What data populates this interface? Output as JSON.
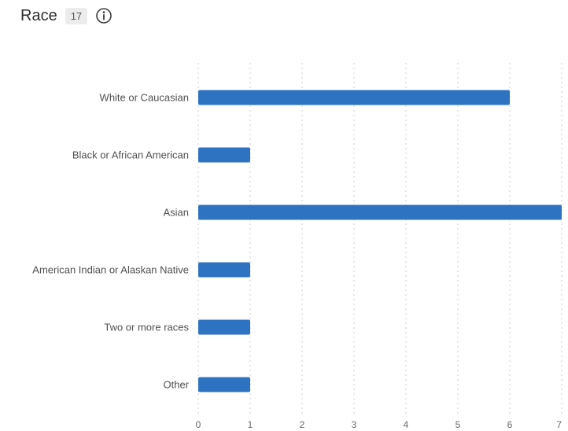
{
  "header": {
    "title": "Race",
    "count": "17",
    "info_icon": "info-circle-icon"
  },
  "chart_data": {
    "type": "bar",
    "orientation": "horizontal",
    "title": "",
    "categories": [
      "White or Caucasian",
      "Black or African American",
      "Asian",
      "American Indian or Alaskan Native",
      "Two or more races",
      "Other"
    ],
    "values": [
      6,
      1,
      7,
      1,
      1,
      1
    ],
    "xlim": [
      0,
      7
    ],
    "xticks": [
      0,
      1,
      2,
      3,
      4,
      5,
      6,
      7
    ],
    "grid": "vertical-dotted",
    "bar_color": "#2e73c2",
    "xlabel": "",
    "ylabel": ""
  }
}
